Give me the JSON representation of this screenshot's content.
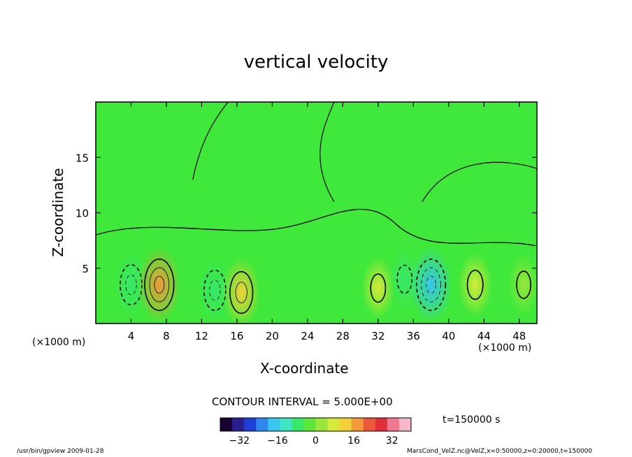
{
  "chart_data": {
    "type": "heatmap",
    "title": "vertical velocity",
    "xlabel": "X-coordinate",
    "ylabel": "Z-coordinate",
    "x_unit_label": "(×1000 m)",
    "y_unit_label": "(×1000 m)",
    "xlim": [
      0,
      50
    ],
    "ylim": [
      0,
      20
    ],
    "x_ticks": [
      4,
      8,
      12,
      16,
      20,
      24,
      28,
      32,
      36,
      40,
      44,
      48
    ],
    "y_ticks": [
      5,
      10,
      15
    ],
    "contour_interval_text": "CONTOUR INTERVAL = 5.000E+00",
    "time_text": "t=150000 s",
    "colorbar": {
      "range": [
        -40,
        40
      ],
      "ticks": [
        -32,
        -16,
        0,
        16,
        32
      ],
      "colors": [
        "#1a0033",
        "#2a1f8f",
        "#1f3fd9",
        "#2f86ee",
        "#38c6ef",
        "#3fe6c4",
        "#37e86a",
        "#5fe63a",
        "#9ae63a",
        "#d6ea3a",
        "#f3d13a",
        "#f29a3a",
        "#ea5a3a",
        "#e0303a",
        "#f07890",
        "#f4b7c8"
      ]
    },
    "features": [
      {
        "x": 4.0,
        "z": 3.5,
        "value": -10,
        "sign": "negative"
      },
      {
        "x": 7.2,
        "z": 3.5,
        "value": 18,
        "sign": "positive"
      },
      {
        "x": 13.5,
        "z": 3.0,
        "value": -10,
        "sign": "negative"
      },
      {
        "x": 16.5,
        "z": 2.8,
        "value": 12,
        "sign": "positive"
      },
      {
        "x": 32.0,
        "z": 3.2,
        "value": 6,
        "sign": "positive"
      },
      {
        "x": 35.0,
        "z": 4.0,
        "value": -6,
        "sign": "negative"
      },
      {
        "x": 38.0,
        "z": 3.5,
        "value": -18,
        "sign": "negative"
      },
      {
        "x": 43.0,
        "z": 3.5,
        "value": 8,
        "sign": "positive"
      },
      {
        "x": 48.5,
        "z": 3.5,
        "value": 4,
        "sign": "positive"
      }
    ]
  },
  "footer": {
    "left": "/usr/bin/gpview   2009-01-28",
    "right": "MarsCond_VelZ.nc@VelZ,x=0:50000,z=0:20000,t=150000"
  }
}
